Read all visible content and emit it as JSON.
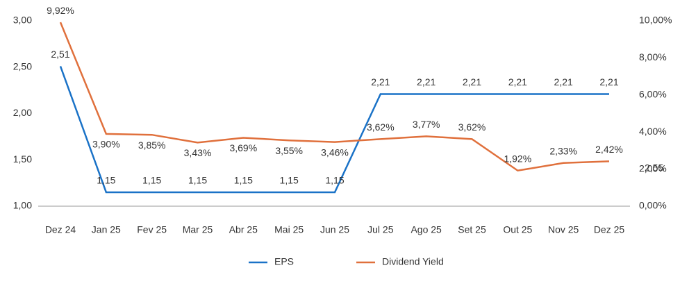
{
  "chart_data": {
    "type": "line",
    "categories": [
      "Dez 24",
      "Jan 25",
      "Fev 25",
      "Mar 25",
      "Abr 25",
      "Mai 25",
      "Jun 25",
      "Jul 25",
      "Ago 25",
      "Set 25",
      "Out 25",
      "Nov 25",
      "Dez 25"
    ],
    "series": [
      {
        "name": "EPS",
        "color": "#1a72c7",
        "values": [
          2.51,
          1.15,
          1.15,
          1.15,
          1.15,
          1.15,
          1.15,
          2.21,
          2.21,
          2.21,
          2.21,
          2.21,
          2.21
        ],
        "value_labels": [
          "2,51",
          "1,15",
          "1,15",
          "1,15",
          "1,15",
          "1,15",
          "1,15",
          "2,21",
          "2,21",
          "2,21",
          "2,21",
          "2,21",
          "2,21"
        ]
      },
      {
        "name": "Dividend Yield",
        "color": "#e0703c",
        "axis": "y2",
        "values": [
          9.92,
          3.9,
          3.85,
          3.43,
          3.69,
          3.55,
          3.46,
          3.62,
          3.77,
          3.62,
          1.92,
          2.33,
          2.42
        ],
        "value_labels": [
          "9,92%",
          "3,90%",
          "3,85%",
          "3,43%",
          "3,69%",
          "3,55%",
          "3,46%",
          "3,62%",
          "3,77%",
          "3,62%",
          "1,92%",
          "2,33%",
          "2,42%"
        ]
      }
    ],
    "ylim": [
      1,
      3
    ],
    "yticks": [
      {
        "value": 1,
        "label": "1,00"
      },
      {
        "value": 1.5,
        "label": "1,50"
      },
      {
        "value": 2,
        "label": "2,00"
      },
      {
        "value": 2.5,
        "label": "2,50"
      },
      {
        "value": 3,
        "label": "3,00"
      }
    ],
    "y2lim": [
      0,
      10
    ],
    "y2ticks": [
      {
        "value": 0,
        "label": "0,00%"
      },
      {
        "value": 2,
        "label": "2,00%"
      },
      {
        "value": 4,
        "label": "4,00%"
      },
      {
        "value": 6,
        "label": "6,00%"
      },
      {
        "value": 8,
        "label": "8,00%"
      },
      {
        "value": 10,
        "label": "10,00%"
      }
    ],
    "annotation": "2,55",
    "legend": "bottom"
  }
}
